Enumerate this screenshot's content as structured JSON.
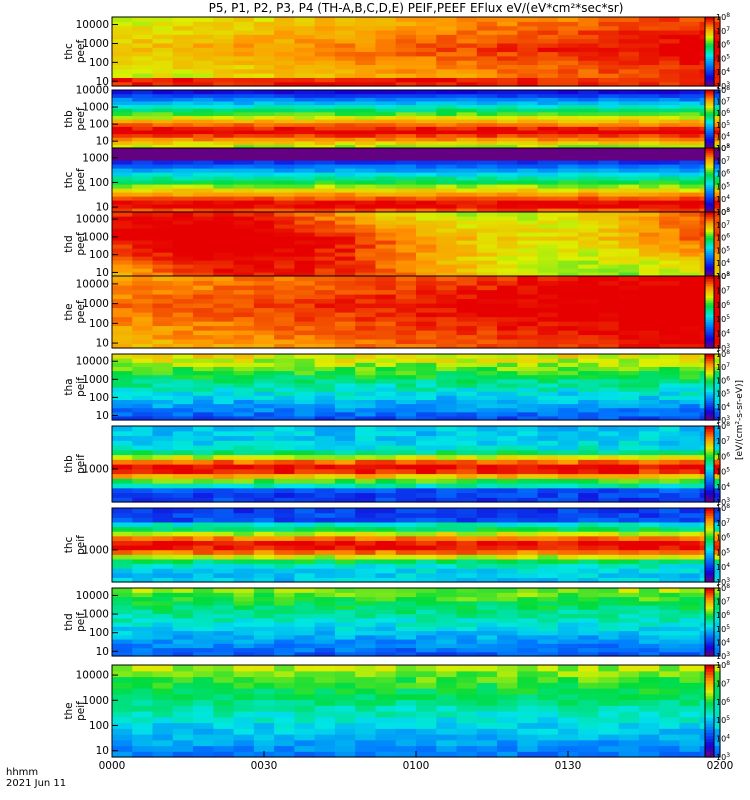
{
  "title": "P5, P1, P2, P3, P4 (TH-A,B,C,D,E) PEIF,PEEF EFlux eV/(eV*cm²*sec*sr)",
  "footer": {
    "time_label": "hhmm",
    "date_label": "2021 Jun 11"
  },
  "colorbar_unit": "[eV/(cm²-s-sr-eV)]",
  "chart_data": {
    "type": "heatmap",
    "x_ticks": [
      "0000",
      "0030",
      "0100",
      "0130",
      "0200"
    ],
    "x_range": [
      "00:00",
      "02:00"
    ],
    "panels": [
      {
        "label1": "thc",
        "label2": "peef",
        "yticks": [
          "10",
          "100",
          "1000",
          "10000"
        ],
        "cmin": 3,
        "cmax": 8
      },
      {
        "label1": "thb",
        "label2": "peef",
        "yticks": [
          "10",
          "100",
          "1000",
          "10000"
        ],
        "cmin": 3,
        "cmax": 8
      },
      {
        "label1": "thc",
        "label2": "peef",
        "yticks": [
          "10",
          "100",
          "1000"
        ],
        "cmin": 3,
        "cmax": 8
      },
      {
        "label1": "thd",
        "label2": "peef",
        "yticks": [
          "10",
          "100",
          "1000",
          "10000"
        ],
        "cmin": 3,
        "cmax": 8
      },
      {
        "label1": "the",
        "label2": "peef",
        "yticks": [
          "10",
          "100",
          "1000",
          "10000"
        ],
        "cmin": 3,
        "cmax": 8
      },
      {
        "label1": "tha",
        "label2": "peif",
        "yticks": [
          "10",
          "100",
          "1000",
          "10000"
        ],
        "cmin": 3,
        "cmax": 8
      },
      {
        "label1": "thb",
        "label2": "peif",
        "yticks": [
          "1000"
        ],
        "cmin": 3,
        "cmax": 8
      },
      {
        "label1": "thc",
        "label2": "peif",
        "yticks": [
          "1000"
        ],
        "cmin": 3,
        "cmax": 8
      },
      {
        "label1": "thd",
        "label2": "peif",
        "yticks": [
          "10",
          "100",
          "1000",
          "10000"
        ],
        "cmin": 3,
        "cmax": 8
      },
      {
        "label1": "the",
        "label2": "peif",
        "yticks": [
          "10",
          "100",
          "1000",
          "10000"
        ],
        "cmin": 3,
        "cmax": 8
      }
    ]
  }
}
